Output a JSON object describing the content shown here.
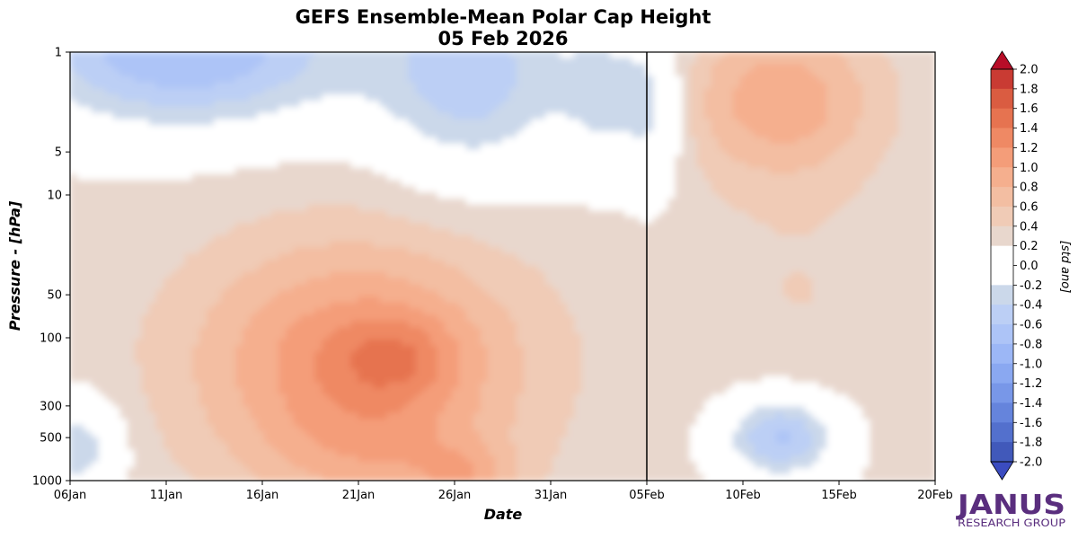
{
  "chart_data": {
    "type": "heatmap",
    "title": "GEFS Ensemble-Mean Polar Cap Height",
    "subtitle": "05 Feb 2026",
    "xlabel": "Date",
    "ylabel": "Pressure - [hPa]",
    "x_ticks": [
      "06Jan",
      "11Jan",
      "16Jan",
      "21Jan",
      "26Jan",
      "31Jan",
      "05Feb",
      "10Feb",
      "15Feb",
      "20Feb"
    ],
    "x_range_days": [
      0,
      45
    ],
    "y_ticks": [
      1,
      5,
      10,
      50,
      100,
      300,
      500,
      1000
    ],
    "y_scale": "log",
    "y_range": [
      1000,
      1
    ],
    "forecast_start": "05Feb",
    "colorbar": {
      "label": "[std ano]",
      "min": -2.0,
      "max": 2.0,
      "ticks": [
        "2.0",
        "1.8",
        "1.6",
        "1.4",
        "1.2",
        "1.0",
        "0.8",
        "0.6",
        "0.4",
        "0.2",
        "0.0",
        "-0.2",
        "-0.4",
        "-0.6",
        "-0.8",
        "-1.0",
        "-1.2",
        "-1.4",
        "-1.6",
        "-1.8",
        "-2.0"
      ],
      "colors": {
        "pos": [
          "#ffffff",
          "#e8d7cd",
          "#f0cbb6",
          "#f3bea2",
          "#f5af8e",
          "#f49d79",
          "#ef8964",
          "#e67350",
          "#da5c41",
          "#c93b33",
          "#b70d28"
        ],
        "neg": [
          "#ffffff",
          "#cbd8ea",
          "#bccff5",
          "#adc4f7",
          "#9cb7f6",
          "#8aa8f1",
          "#7897e8",
          "#6584dc",
          "#5370cd",
          "#4159ba",
          "#3b4cc0"
        ]
      }
    },
    "features": [
      {
        "name": "stratospheric negative anomaly early Jan",
        "value": -0.6,
        "days": [
          0,
          24
        ],
        "pressure_hPa": [
          1,
          10
        ]
      },
      {
        "name": "lower-strat positive maximum",
        "value": 1.3,
        "day": 14.5,
        "pressure_hPa": 150
      },
      {
        "name": "near-surface positive maximum",
        "value": 1.2,
        "day": 20,
        "pressure_hPa": 1000
      },
      {
        "name": "upper-strat positive maximum mid Feb",
        "value": 0.8,
        "day": 37,
        "pressure_hPa": 2
      },
      {
        "name": "tropospheric negative anomaly mid Feb",
        "value": -0.4,
        "day": 37,
        "pressure_hPa": 500
      }
    ]
  },
  "logo": {
    "name": "JANUS",
    "subtitle": "RESEARCH GROUP",
    "color": "#5a2e7e"
  }
}
